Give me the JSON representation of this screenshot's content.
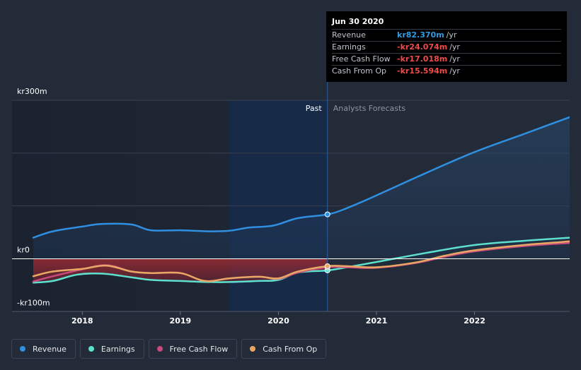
{
  "tooltip": {
    "title": "Jun 30 2020",
    "rows": [
      {
        "label": "Revenue",
        "value": "kr82.370m",
        "unit": "/yr",
        "color": "#2f9de4"
      },
      {
        "label": "Earnings",
        "value": "-kr24.074m",
        "unit": "/yr",
        "color": "#ee4b4b"
      },
      {
        "label": "Free Cash Flow",
        "value": "-kr17.018m",
        "unit": "/yr",
        "color": "#ee4b4b"
      },
      {
        "label": "Cash From Op",
        "value": "-kr15.594m",
        "unit": "/yr",
        "color": "#ee4b4b"
      }
    ]
  },
  "legend": [
    {
      "label": "Revenue",
      "color": "#2f8fe0"
    },
    {
      "label": "Earnings",
      "color": "#5ee0cf"
    },
    {
      "label": "Free Cash Flow",
      "color": "#c94a7e"
    },
    {
      "label": "Cash From Op",
      "color": "#e8a864"
    }
  ],
  "chart_data": {
    "type": "line",
    "y_labels": [
      "kr300m",
      "kr0",
      "-kr100m"
    ],
    "ylim": [
      -100,
      300
    ],
    "xlim": [
      2017.5,
      2022.97
    ],
    "x_ticks": [
      "2018",
      "2019",
      "2020",
      "2021",
      "2022"
    ],
    "x_tick_values": [
      2018,
      2019,
      2020,
      2021,
      2022
    ],
    "past_label": "Past",
    "forecast_label": "Analysts Forecasts",
    "past_shade_start": 2019.5,
    "divider": 2020.5,
    "marker_x": 2020.5,
    "series": [
      {
        "name": "Revenue",
        "color": "#2f8fe0",
        "x": [
          2017.5,
          2017.7,
          2018.0,
          2018.2,
          2018.5,
          2018.7,
          2019.0,
          2019.3,
          2019.5,
          2019.7,
          2019.95,
          2020.2,
          2020.5,
          2020.7,
          2021.0,
          2021.5,
          2022.0,
          2022.5,
          2022.97
        ],
        "y": [
          40,
          52,
          61,
          66,
          65,
          54,
          54,
          52,
          53,
          59,
          63,
          77,
          84,
          96,
          120,
          162,
          202,
          236,
          268
        ]
      },
      {
        "name": "Earnings",
        "color": "#5ee0cf",
        "x": [
          2017.5,
          2017.7,
          2017.95,
          2018.2,
          2018.5,
          2018.7,
          2019.0,
          2019.3,
          2019.5,
          2019.8,
          2020.0,
          2020.2,
          2020.5,
          2020.7,
          2021.0,
          2021.5,
          2022.0,
          2022.5,
          2022.97
        ],
        "y": [
          -45,
          -42,
          -30,
          -28,
          -35,
          -40,
          -42,
          -44,
          -44,
          -42,
          -40,
          -26,
          -22,
          -16,
          -6,
          11,
          26,
          34,
          40
        ]
      },
      {
        "name": "Free Cash Flow",
        "color": "#c94a7e",
        "x": [
          2017.5,
          2017.7,
          2018.0,
          2018.25,
          2018.5,
          2018.7,
          2019.0,
          2019.25,
          2019.5,
          2019.8,
          2020.0,
          2020.2,
          2020.5,
          2020.7,
          2021.0,
          2021.4,
          2021.7,
          2022.0,
          2022.5,
          2022.97
        ],
        "y": [
          -43,
          -33,
          -20,
          -12,
          -24,
          -27,
          -27,
          -42,
          -37,
          -34,
          -38,
          -26,
          -16,
          -16,
          -17,
          -8,
          4,
          14,
          24,
          30
        ]
      },
      {
        "name": "Cash From Op",
        "color": "#e8a864",
        "x": [
          2017.5,
          2017.7,
          2018.0,
          2018.25,
          2018.5,
          2018.7,
          2019.0,
          2019.25,
          2019.5,
          2019.8,
          2020.0,
          2020.2,
          2020.5,
          2020.7,
          2021.0,
          2021.4,
          2021.7,
          2022.0,
          2022.5,
          2022.97
        ],
        "y": [
          -33,
          -24,
          -19,
          -13,
          -24,
          -27,
          -27,
          -42,
          -37,
          -34,
          -37,
          -24,
          -14,
          -14,
          -16,
          -7,
          6,
          16,
          26,
          33
        ]
      }
    ]
  }
}
